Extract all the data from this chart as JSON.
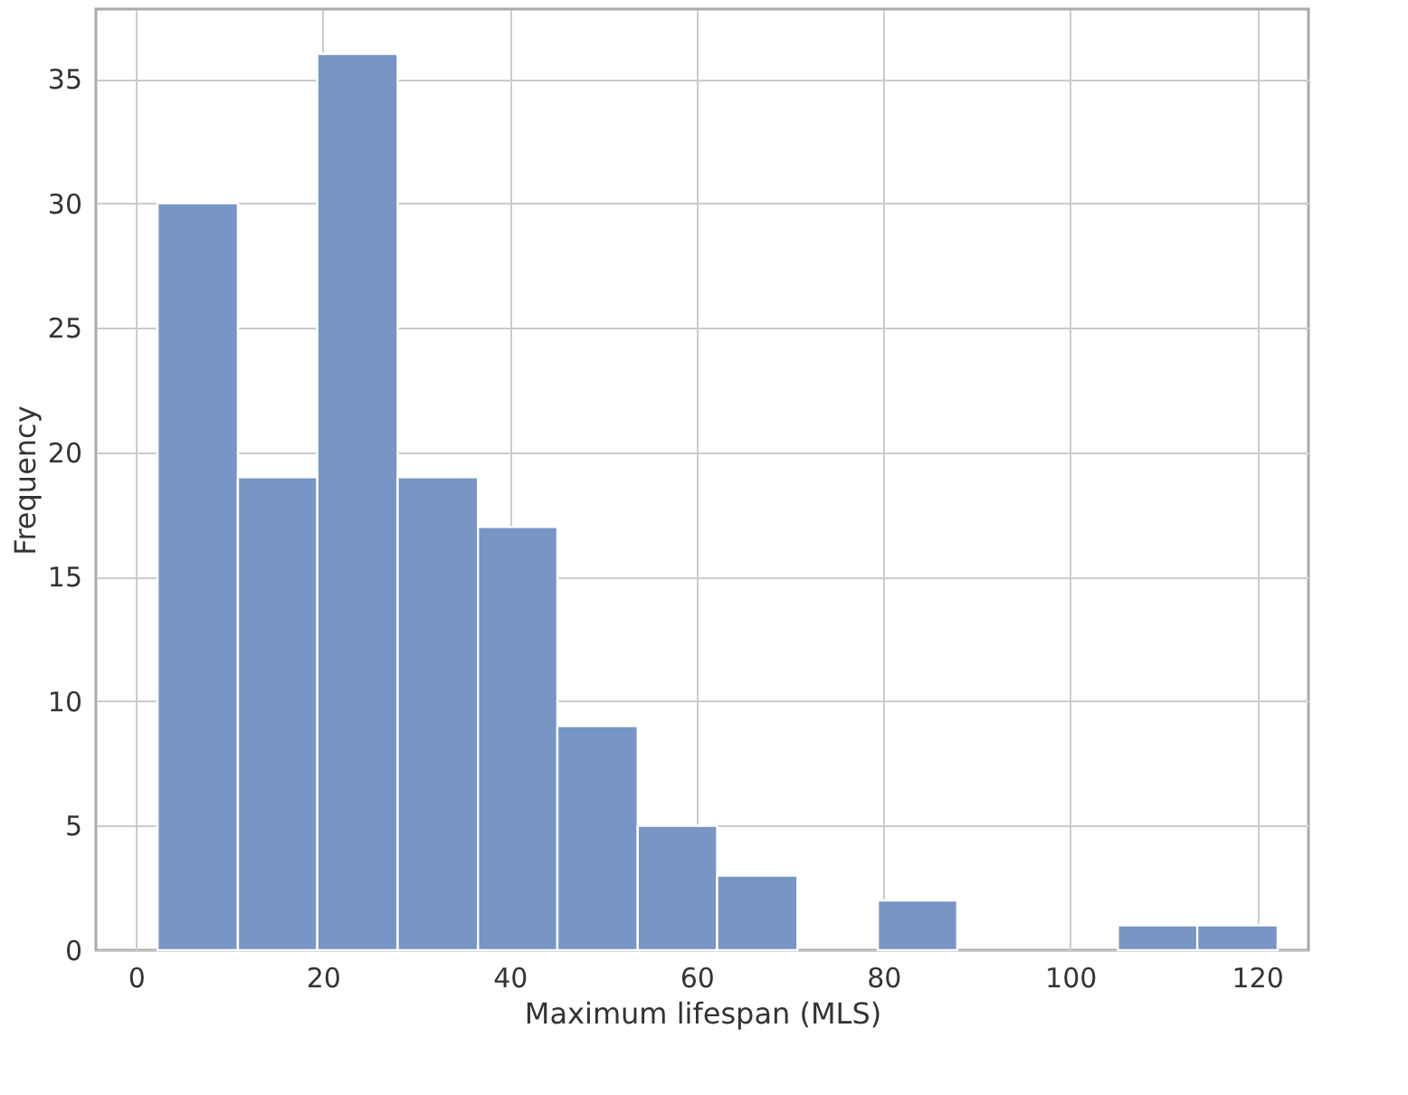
{
  "chart_data": {
    "type": "histogram",
    "xlabel": "Maximum lifespan (MLS)",
    "ylabel": "Frequency",
    "bins": [
      2.3,
      10.9,
      19.4,
      28.0,
      36.6,
      45.1,
      53.7,
      62.2,
      70.8,
      79.4,
      87.9,
      105.1,
      113.6,
      122.2
    ],
    "values": [
      30,
      19,
      36,
      19,
      17,
      9,
      5,
      3,
      0,
      2,
      0,
      1,
      1
    ],
    "color": "#7795c5",
    "xlim": [
      -4.3,
      125.5
    ],
    "xticks": [
      0,
      20,
      40,
      60,
      80,
      100,
      120
    ],
    "ylim": [
      0,
      37.8
    ],
    "yticks": [
      0,
      5,
      10,
      15,
      20,
      25,
      30,
      35
    ],
    "grid": true
  }
}
